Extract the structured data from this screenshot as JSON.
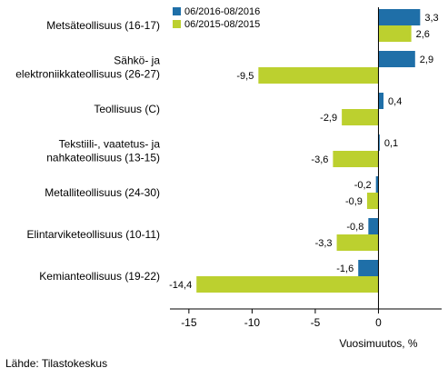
{
  "chart_data": {
    "type": "bar",
    "orientation": "horizontal",
    "categories": [
      [
        "Metsäteollisuus (16-17)"
      ],
      [
        "Sähkö- ja",
        "elektroniikkateollisuus (26-27)"
      ],
      [
        "Teollisuus (C)"
      ],
      [
        "Tekstiili-, vaatetus- ja",
        "nahkateollisuus (13-15)"
      ],
      [
        "Metalliteollisuus (24-30)"
      ],
      [
        "Elintarviketeollisuus (10-11)"
      ],
      [
        "Kemianteollisuus (19-22)"
      ]
    ],
    "series": [
      {
        "name": "06/2016-08/2016",
        "color": "#1f6fa8",
        "values": [
          3.3,
          2.9,
          0.4,
          0.1,
          -0.2,
          -0.8,
          -1.6
        ],
        "labels": [
          "3,3",
          "2,9",
          "0,4",
          "0,1",
          "-0,2",
          "-0,8",
          "-1,6"
        ]
      },
      {
        "name": "06/2015-08/2015",
        "color": "#bcd02f",
        "values": [
          2.6,
          -9.5,
          -2.9,
          -3.6,
          -0.9,
          -3.3,
          -14.4
        ],
        "labels": [
          "2,6",
          "-9,5",
          "-2,9",
          "-3,6",
          "-0,9",
          "-3,3",
          "-14,4"
        ]
      }
    ],
    "xlim": [
      -16.5,
      5
    ],
    "xticks": [
      -15,
      -10,
      -5,
      0
    ],
    "xtick_labels": [
      "-15",
      "-10",
      "-5",
      "0"
    ],
    "xlabel": "Vuosimuutos, %",
    "legend_position": "top-left",
    "grid": false
  },
  "source": "Lähde: Tilastokeskus"
}
